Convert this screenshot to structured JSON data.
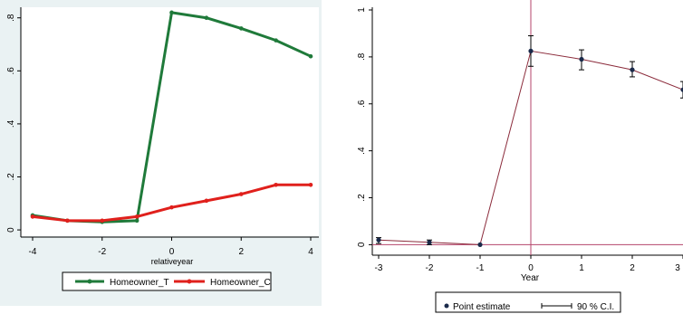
{
  "chart_data": [
    {
      "type": "line",
      "title": "",
      "xlabel": "relativeyear",
      "ylabel": "",
      "xlim": [
        -4,
        4
      ],
      "ylim": [
        -0.01,
        0.84
      ],
      "xticks": [
        -4,
        -2,
        0,
        2,
        4
      ],
      "xtick_labels": [
        "-4",
        "-2",
        "0",
        "2",
        "4"
      ],
      "yticks": [
        0,
        0.2,
        0.4,
        0.6,
        0.8
      ],
      "ytick_labels": [
        "0",
        ".2",
        ".4",
        ".6",
        ".8"
      ],
      "grid": false,
      "legend_position": "bottom",
      "x": [
        -4,
        -3,
        -2,
        -1,
        0,
        1,
        2,
        3,
        4
      ],
      "series": [
        {
          "name": "Homeowner_T",
          "color": "#1f7a3a",
          "values": [
            0.055,
            0.035,
            0.03,
            0.035,
            0.82,
            0.8,
            0.76,
            0.715,
            0.655
          ]
        },
        {
          "name": "Homeowner_C",
          "color": "#e0201c",
          "values": [
            0.05,
            0.035,
            0.035,
            0.05,
            0.085,
            0.11,
            0.135,
            0.17,
            0.17
          ]
        }
      ]
    },
    {
      "type": "scatter",
      "title": "",
      "xlabel": "Year",
      "ylabel": "",
      "xlim": [
        -3,
        3
      ],
      "ylim": [
        -0.01,
        1.0
      ],
      "xticks": [
        -3,
        -2,
        -1,
        0,
        1,
        2,
        3
      ],
      "xtick_labels": [
        "-3",
        "-2",
        "-1",
        "0",
        "1",
        "2",
        "3"
      ],
      "yticks": [
        0,
        0.2,
        0.4,
        0.6,
        0.8,
        1
      ],
      "ytick_labels": [
        "0",
        ".2",
        ".4",
        ".6",
        ".8",
        "1"
      ],
      "grid": false,
      "legend_position": "bottom",
      "reference_lines": {
        "x": 0,
        "y": 0,
        "color": "#b5446b"
      },
      "connector_color": "#8b2b3b",
      "marker_color": "#1a2a4a",
      "x": [
        -3,
        -2,
        -1,
        0,
        1,
        2,
        3
      ],
      "point_estimate": [
        0.02,
        0.01,
        0.0,
        0.825,
        0.79,
        0.745,
        0.66
      ],
      "ci_lower": [
        0.005,
        0.0,
        0.0,
        0.76,
        0.745,
        0.715,
        0.625
      ],
      "ci_upper": [
        0.03,
        0.02,
        0.0,
        0.89,
        0.83,
        0.78,
        0.695
      ],
      "legend": {
        "point_label": "Point estimate",
        "ci_label": "90 % C.I."
      }
    }
  ]
}
